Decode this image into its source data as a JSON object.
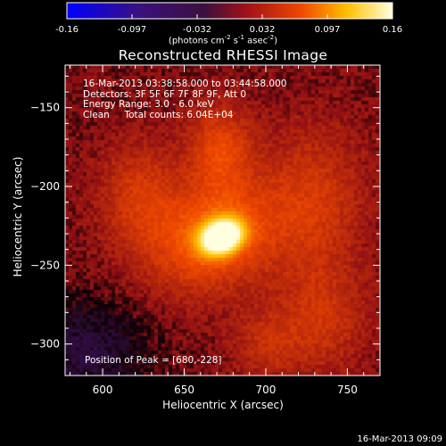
{
  "colorbar": {
    "tick_labels": [
      "-0.16",
      "-0.097",
      "-0.032",
      "0.032",
      "0.097",
      "0.16"
    ],
    "units_text": "(photons cm",
    "units_exp1": "-2",
    "units_mid": " s",
    "units_exp2": "-1",
    "units_mid2": " asec",
    "units_exp3": "-2",
    "units_end": ")",
    "colors": [
      "#0000ff",
      "#000000",
      "#4a1060",
      "#a01010",
      "#ff6000",
      "#ffff80",
      "#ffffff"
    ]
  },
  "overlay": {
    "line1": "16-Mar-2013 03:38:58.000 to 03:44:58.000",
    "line2": "Detectors: 3F 5F 6F 7F 8F 9F, Att 0",
    "line3": "Energy Range: 3.0 - 6.0 keV",
    "line4": "Clean     Total counts: 6.04E+04",
    "peak": "Position of Peak = [680,-228]"
  },
  "timestamp": "16-Mar-2013 09:09",
  "chart_data": {
    "type": "heatmap",
    "title": "Reconstructed RHESSI Image",
    "xlabel": "Heliocentric X (arcsec)",
    "ylabel": "Heliocentric Y (arcsec)",
    "xlim": [
      577,
      770
    ],
    "ylim": [
      -320,
      -123
    ],
    "x_ticks": [
      600,
      650,
      700,
      750
    ],
    "y_ticks": [
      -150,
      -200,
      -250,
      -300
    ],
    "x_tick_labels": [
      "600",
      "650",
      "700",
      "750"
    ],
    "y_tick_labels": [
      "−150",
      "−200",
      "−250",
      "−300"
    ],
    "clim": [
      -0.16,
      0.16
    ],
    "peak_position": [
      680,
      -228
    ],
    "sources": [
      {
        "x": 673,
        "y": -232,
        "amplitude": 0.16,
        "sigma_x": 9,
        "sigma_y": 7,
        "angle_deg": 25
      },
      {
        "x": 668,
        "y": -232,
        "amplitude": 0.07,
        "sigma_x": 30,
        "sigma_y": 24,
        "angle_deg": 35
      },
      {
        "x": 672,
        "y": -175,
        "amplitude": 0.05,
        "sigma_x": 14,
        "sigma_y": 20,
        "angle_deg": 0
      },
      {
        "x": 622,
        "y": -205,
        "amplitude": 0.04,
        "sigma_x": 18,
        "sigma_y": 25,
        "angle_deg": 0
      },
      {
        "x": 730,
        "y": -210,
        "amplitude": 0.04,
        "sigma_x": 22,
        "sigma_y": 35,
        "angle_deg": 0
      },
      {
        "x": 735,
        "y": -285,
        "amplitude": 0.035,
        "sigma_x": 20,
        "sigma_y": 25,
        "angle_deg": 0
      },
      {
        "x": 700,
        "y": -300,
        "amplitude": 0.03,
        "sigma_x": 15,
        "sigma_y": 15,
        "angle_deg": 0
      }
    ],
    "negative_regions": [
      {
        "x": 590,
        "y": -305,
        "amplitude": -0.05,
        "sigma_x": 25,
        "sigma_y": 22
      }
    ]
  }
}
